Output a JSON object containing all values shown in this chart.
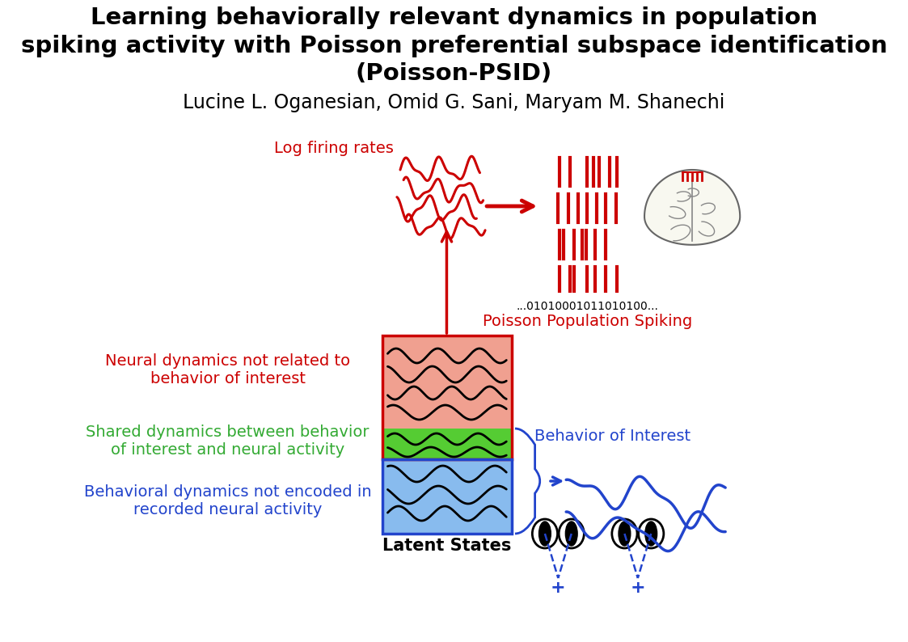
{
  "title_line1": "Learning behaviorally relevant dynamics in population",
  "title_line2": "spiking activity with Poisson preferential subspace identification",
  "title_line3": "(Poisson-PSID)",
  "authors": "Lucine L. Oganesian, Omid G. Sani, Maryam M. Shanechi",
  "title_fontsize": 21,
  "authors_fontsize": 17,
  "bg_color": "#ffffff",
  "red_color": "#cc0000",
  "green_color": "#33aa33",
  "blue_color": "#2244cc",
  "label_neural": "Neural dynamics not related to\nbehavior of interest",
  "label_shared": "Shared dynamics between behavior\nof interest and neural activity",
  "label_behavioral": "Behavioral dynamics not encoded in\nrecorded neural activity",
  "label_log_firing": "Log firing rates",
  "label_poisson": "Poisson Population Spiking",
  "label_behavior": "Behavior of Interest",
  "label_latent": "Latent States",
  "binary_str": "...01010001011010100...",
  "red_fill": "#f0a090",
  "green_fill": "#55cc33",
  "blue_fill": "#88bbee",
  "spike_rows": [
    [
      [
        720,
        195,
        230
      ],
      [
        736,
        195,
        230
      ],
      [
        762,
        195,
        230
      ],
      [
        771,
        195,
        230
      ],
      [
        780,
        195,
        230
      ],
      [
        795,
        195,
        230
      ],
      [
        806,
        195,
        230
      ]
    ],
    [
      [
        718,
        240,
        275
      ],
      [
        733,
        240,
        275
      ],
      [
        748,
        240,
        275
      ],
      [
        762,
        240,
        275
      ],
      [
        776,
        240,
        275
      ],
      [
        790,
        240,
        275
      ],
      [
        805,
        240,
        275
      ]
    ],
    [
      [
        720,
        285,
        320
      ],
      [
        726,
        285,
        320
      ],
      [
        742,
        285,
        320
      ],
      [
        754,
        285,
        320
      ],
      [
        760,
        285,
        320
      ],
      [
        774,
        285,
        320
      ],
      [
        789,
        285,
        320
      ]
    ],
    [
      [
        720,
        330,
        360
      ],
      [
        736,
        330,
        360
      ],
      [
        742,
        330,
        360
      ],
      [
        762,
        330,
        360
      ],
      [
        774,
        330,
        360
      ],
      [
        789,
        330,
        360
      ],
      [
        806,
        330,
        360
      ]
    ]
  ]
}
